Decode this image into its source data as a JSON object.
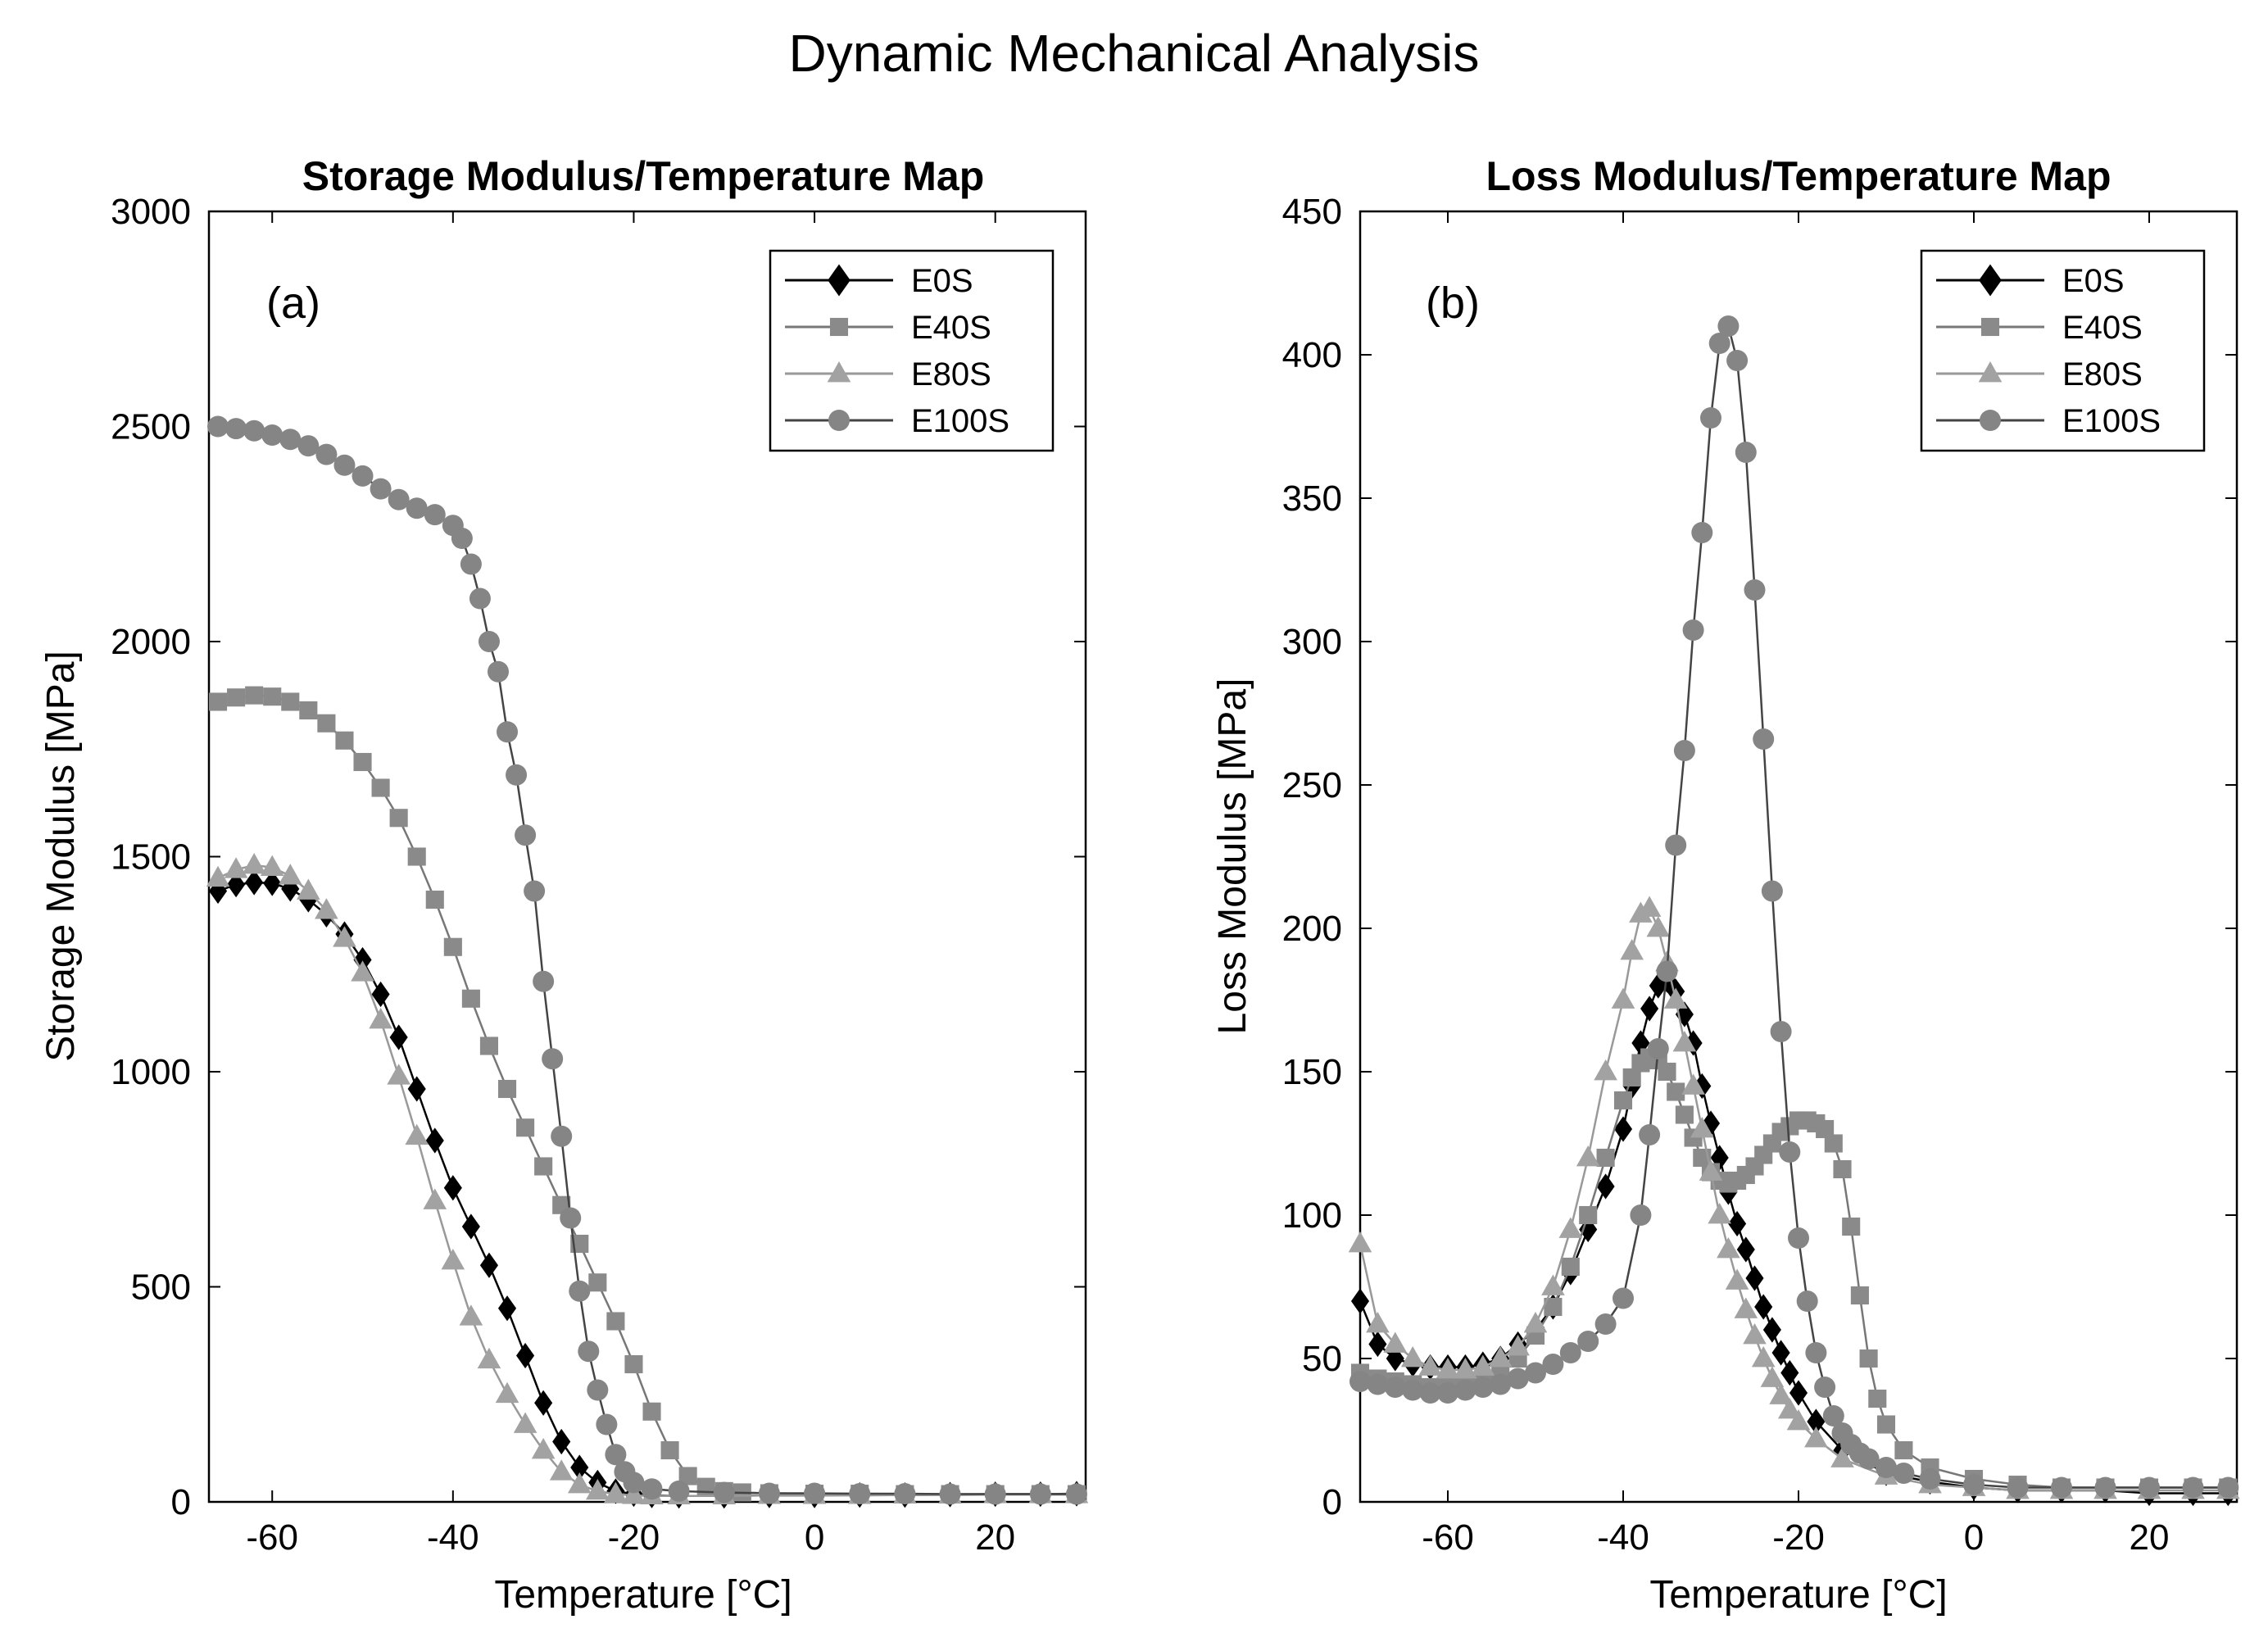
{
  "figure_title": "Dynamic Mechanical Analysis",
  "colors": {
    "E0S": "#000000",
    "E40S": "#888888",
    "E80S": "#999999",
    "E100S": "#808080"
  },
  "chart_data": [
    {
      "type": "scatter",
      "title": "Storage Modulus/Temperature Map",
      "annotation": "(a)",
      "xlabel": "Temperature [°C]",
      "ylabel": "Storage Modulus [MPa]",
      "xlim": [
        -67,
        30
      ],
      "ylim": [
        0,
        3000
      ],
      "xticks": [
        -60,
        -40,
        -20,
        0,
        20
      ],
      "yticks": [
        0,
        500,
        1000,
        1500,
        2000,
        2500,
        3000
      ],
      "legend_position": "top-right",
      "series": [
        {
          "name": "E0S",
          "marker": "diamond",
          "x": [
            -66,
            -64,
            -62,
            -60,
            -58,
            -56,
            -54,
            -52,
            -50,
            -48,
            -46,
            -44,
            -42,
            -40,
            -38,
            -36,
            -34,
            -32,
            -30,
            -28,
            -26,
            -24,
            -22,
            -20,
            -18,
            -15,
            -10,
            -5,
            0,
            5,
            10,
            15,
            20,
            25,
            29
          ],
          "y": [
            1420,
            1435,
            1440,
            1438,
            1425,
            1400,
            1365,
            1320,
            1260,
            1180,
            1080,
            960,
            840,
            730,
            640,
            550,
            450,
            340,
            230,
            140,
            80,
            45,
            25,
            18,
            15,
            14,
            14,
            15,
            15,
            16,
            16,
            17,
            18,
            18,
            19
          ]
        },
        {
          "name": "E40S",
          "marker": "square",
          "x": [
            -66,
            -64,
            -62,
            -60,
            -58,
            -56,
            -54,
            -52,
            -50,
            -48,
            -46,
            -44,
            -42,
            -40,
            -38,
            -36,
            -34,
            -32,
            -30,
            -28,
            -26,
            -24,
            -22,
            -20,
            -18,
            -16,
            -14,
            -12,
            -10,
            -8,
            -5,
            0,
            5,
            10,
            15,
            20,
            25,
            29
          ],
          "y": [
            1860,
            1870,
            1875,
            1872,
            1860,
            1840,
            1810,
            1770,
            1720,
            1660,
            1590,
            1500,
            1400,
            1290,
            1170,
            1060,
            960,
            870,
            780,
            690,
            600,
            510,
            420,
            320,
            210,
            120,
            60,
            35,
            25,
            22,
            20,
            19,
            19,
            18,
            18,
            18,
            18,
            18
          ],
          "note": "curve partially hidden beneath E100S between -30 and -20 °C"
        },
        {
          "name": "E80S",
          "marker": "triangle",
          "x": [
            -66,
            -64,
            -62,
            -60,
            -58,
            -56,
            -54,
            -52,
            -50,
            -48,
            -46,
            -44,
            -42,
            -40,
            -38,
            -36,
            -34,
            -32,
            -30,
            -28,
            -26,
            -24,
            -22,
            -20,
            -18,
            -15,
            -10,
            -5,
            0,
            5,
            10,
            15,
            20,
            25,
            29
          ],
          "y": [
            1450,
            1470,
            1480,
            1475,
            1455,
            1420,
            1375,
            1310,
            1230,
            1120,
            990,
            850,
            700,
            560,
            430,
            330,
            250,
            180,
            120,
            70,
            40,
            25,
            18,
            15,
            14,
            14,
            14,
            15,
            15,
            15,
            16,
            16,
            17,
            17,
            17
          ]
        },
        {
          "name": "E100S",
          "marker": "circle",
          "x": [
            -66,
            -64,
            -62,
            -60,
            -58,
            -56,
            -54,
            -52,
            -50,
            -48,
            -46,
            -44,
            -42,
            -40,
            -39,
            -38,
            -37,
            -36,
            -35,
            -34,
            -33,
            -32,
            -31,
            -30,
            -29,
            -28,
            -27,
            -26,
            -25,
            -24,
            -23,
            -22,
            -21,
            -20,
            -18,
            -15,
            -10,
            -5,
            0,
            5,
            10,
            15,
            20,
            25,
            29
          ],
          "y": [
            2500,
            2495,
            2490,
            2480,
            2470,
            2455,
            2435,
            2410,
            2385,
            2355,
            2330,
            2310,
            2295,
            2270,
            2240,
            2180,
            2100,
            2000,
            1930,
            1790,
            1690,
            1550,
            1420,
            1210,
            1030,
            850,
            660,
            490,
            350,
            260,
            180,
            110,
            70,
            45,
            30,
            25,
            22,
            20,
            20,
            19,
            19,
            18,
            18,
            18,
            18
          ]
        }
      ]
    },
    {
      "type": "scatter",
      "title": "Loss Modulus/Temperature Map",
      "annotation": "(b)",
      "xlabel": "Temperature [°C]",
      "ylabel": "Loss Modulus [MPa]",
      "xlim": [
        -70,
        30
      ],
      "ylim": [
        0,
        450
      ],
      "xticks": [
        -60,
        -40,
        -20,
        0,
        20
      ],
      "yticks": [
        0,
        50,
        100,
        150,
        200,
        250,
        300,
        350,
        400,
        450
      ],
      "legend_position": "top-right",
      "series": [
        {
          "name": "E0S",
          "marker": "diamond",
          "x": [
            -70,
            -68,
            -66,
            -64,
            -62,
            -60,
            -58,
            -56,
            -54,
            -52,
            -50,
            -48,
            -46,
            -44,
            -42,
            -40,
            -39,
            -38,
            -37,
            -36,
            -35,
            -34,
            -33,
            -32,
            -31,
            -30,
            -29,
            -28,
            -27,
            -26,
            -25,
            -24,
            -23,
            -22,
            -21,
            -20,
            -18,
            -15,
            -10,
            -5,
            0,
            5,
            10,
            15,
            20,
            25,
            29
          ],
          "y": [
            70,
            55,
            50,
            48,
            47,
            47,
            47,
            48,
            50,
            55,
            60,
            68,
            80,
            95,
            110,
            130,
            145,
            160,
            172,
            180,
            182,
            178,
            170,
            160,
            145,
            132,
            120,
            108,
            97,
            88,
            78,
            68,
            60,
            52,
            45,
            38,
            28,
            18,
            10,
            7,
            5,
            4,
            4,
            4,
            3,
            3,
            3
          ]
        },
        {
          "name": "E40S",
          "marker": "square",
          "x": [
            -70,
            -68,
            -66,
            -64,
            -62,
            -60,
            -58,
            -56,
            -54,
            -52,
            -50,
            -48,
            -46,
            -44,
            -42,
            -40,
            -39,
            -38,
            -37,
            -36,
            -35,
            -34,
            -33,
            -32,
            -31,
            -30,
            -29,
            -28,
            -27,
            -26,
            -25,
            -24,
            -23,
            -22,
            -21,
            -20,
            -19,
            -18,
            -17,
            -16,
            -15,
            -14,
            -13,
            -12,
            -11,
            -10,
            -8,
            -5,
            0,
            5,
            10,
            15,
            20,
            25,
            29
          ],
          "y": [
            45,
            43,
            42,
            41,
            40,
            40,
            41,
            42,
            45,
            50,
            58,
            68,
            82,
            100,
            120,
            140,
            148,
            153,
            155,
            154,
            150,
            143,
            135,
            127,
            120,
            115,
            112,
            111,
            112,
            114,
            117,
            121,
            125,
            129,
            131,
            133,
            133,
            132,
            130,
            125,
            116,
            96,
            72,
            50,
            36,
            27,
            18,
            12,
            8,
            6,
            5,
            5,
            5,
            5,
            5
          ]
        },
        {
          "name": "E80S",
          "marker": "triangle",
          "x": [
            -70,
            -68,
            -66,
            -64,
            -62,
            -60,
            -58,
            -56,
            -54,
            -52,
            -50,
            -48,
            -46,
            -44,
            -42,
            -40,
            -39,
            -38,
            -37,
            -36,
            -35,
            -34,
            -33,
            -32,
            -31,
            -30,
            -29,
            -28,
            -27,
            -26,
            -25,
            -24,
            -23,
            -22,
            -21,
            -20,
            -18,
            -15,
            -10,
            -5,
            0,
            5,
            10,
            15,
            20,
            25,
            29
          ],
          "y": [
            90,
            62,
            55,
            50,
            47,
            46,
            46,
            47,
            50,
            54,
            62,
            75,
            95,
            120,
            150,
            175,
            192,
            205,
            207,
            200,
            188,
            175,
            160,
            145,
            130,
            115,
            100,
            88,
            77,
            67,
            58,
            50,
            43,
            37,
            32,
            28,
            22,
            15,
            9,
            6,
            5,
            4,
            4,
            4,
            4,
            4,
            4
          ]
        },
        {
          "name": "E100S",
          "marker": "circle",
          "x": [
            -70,
            -68,
            -66,
            -64,
            -62,
            -60,
            -58,
            -56,
            -54,
            -52,
            -50,
            -48,
            -46,
            -44,
            -42,
            -40,
            -38,
            -37,
            -36,
            -35,
            -34,
            -33,
            -32,
            -31,
            -30,
            -29,
            -28,
            -27,
            -26,
            -25,
            -24,
            -23,
            -22,
            -21,
            -20,
            -19,
            -18,
            -17,
            -16,
            -15,
            -14,
            -13,
            -12,
            -10,
            -8,
            -5,
            0,
            5,
            10,
            15,
            20,
            25,
            29
          ],
          "y": [
            42,
            41,
            40,
            39,
            38,
            38,
            39,
            40,
            41,
            43,
            45,
            48,
            52,
            56,
            62,
            71,
            100,
            128,
            158,
            185,
            229,
            262,
            304,
            338,
            378,
            404,
            410,
            398,
            366,
            318,
            266,
            213,
            164,
            122,
            92,
            70,
            52,
            40,
            30,
            24,
            20,
            17,
            15,
            12,
            10,
            8,
            6,
            5,
            5,
            5,
            5,
            5,
            5
          ]
        }
      ]
    }
  ]
}
